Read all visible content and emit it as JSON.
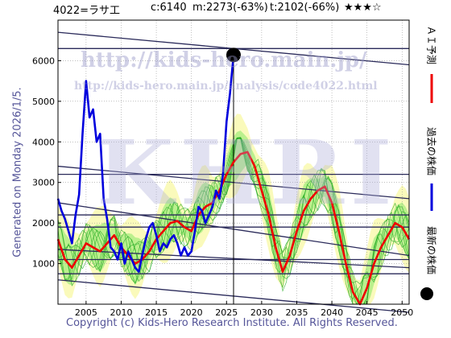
{
  "header": {
    "code_name": "4022=ラサ工",
    "current": "c:6140",
    "mean": "m:2273(-63%)",
    "target": "t:2102(-66%)",
    "stars": "★★★☆"
  },
  "footer": {
    "copyright": "Copyright (c) Kids-Hero Research Institute. All Rights Reserved."
  },
  "side": {
    "generated": "Generated on Monday 2026/1/5."
  },
  "legend": {
    "ai_forecast": "ＡＩ予測",
    "past_price": "過去の株価",
    "latest_price": "最新の株価"
  },
  "watermark": {
    "url": "http://kids-hero.main.jp/",
    "path": "http://kids-hero.main.jp/analysis/code4022.html",
    "big": "KHRI"
  },
  "colors": {
    "past": "#0000dd",
    "forecast": "#ee0000",
    "band_yellow": "#fafab4",
    "band_green": "#b4ee88",
    "sim_lines": "#22aa22",
    "trend_lines": "#2a2a5a",
    "latest_dot": "#000000"
  },
  "chart_data": {
    "type": "line",
    "xlim": [
      2001,
      2051
    ],
    "ylim": [
      0,
      7000
    ],
    "x_ticks": [
      2005,
      2010,
      2015,
      2020,
      2025,
      2030,
      2035,
      2040,
      2045,
      2050
    ],
    "y_ticks": [
      1000,
      2000,
      3000,
      4000,
      5000,
      6000
    ],
    "grid": true,
    "latest_point": {
      "x": 2026.0,
      "y": 6140
    },
    "series": [
      {
        "role": "past",
        "x": [
          2001,
          2001.5,
          2002,
          2002.5,
          2003,
          2003.5,
          2004,
          2004.5,
          2005,
          2005.5,
          2006,
          2006.5,
          2007,
          2007.5,
          2008,
          2008.5,
          2009,
          2009.5,
          2010,
          2010.5,
          2011,
          2011.5,
          2012,
          2012.5,
          2013,
          2013.5,
          2014,
          2014.5,
          2015,
          2015.5,
          2016,
          2016.5,
          2017,
          2017.5,
          2018,
          2018.5,
          2019,
          2019.5,
          2020,
          2020.5,
          2021,
          2021.5,
          2022,
          2022.5,
          2023,
          2023.5,
          2024,
          2024.5,
          2025,
          2025.5,
          2026
        ],
        "values": [
          2600,
          2300,
          2100,
          1800,
          1500,
          2200,
          2700,
          4200,
          5500,
          4600,
          4800,
          4000,
          4200,
          2600,
          2100,
          1400,
          1300,
          1100,
          1500,
          1000,
          1300,
          1100,
          900,
          800,
          1200,
          1600,
          1900,
          2000,
          1700,
          1300,
          1500,
          1400,
          1600,
          1700,
          1500,
          1200,
          1400,
          1200,
          1300,
          1800,
          2400,
          2300,
          2000,
          2200,
          2400,
          2800,
          2600,
          3200,
          4500,
          5200,
          6140
        ]
      },
      {
        "role": "forecast",
        "x": [
          2001,
          2002,
          2003,
          2004,
          2005,
          2006,
          2007,
          2008,
          2009,
          2010,
          2011,
          2012,
          2013,
          2014,
          2015,
          2016,
          2017,
          2018,
          2019,
          2020,
          2021,
          2022,
          2023,
          2024,
          2025,
          2026,
          2027,
          2028,
          2029,
          2030,
          2031,
          2032,
          2033,
          2034,
          2035,
          2036,
          2037,
          2038,
          2039,
          2040,
          2041,
          2042,
          2043,
          2044,
          2045,
          2046,
          2047,
          2048,
          2049,
          2050,
          2051
        ],
        "values": [
          1600,
          1100,
          900,
          1200,
          1500,
          1400,
          1300,
          1500,
          1700,
          1400,
          1200,
          1000,
          1100,
          1300,
          1600,
          1800,
          2000,
          2050,
          1900,
          1800,
          2200,
          2400,
          2500,
          2800,
          3200,
          3500,
          3700,
          3750,
          3400,
          2800,
          2200,
          1400,
          800,
          1200,
          1800,
          2300,
          2600,
          2800,
          2900,
          2500,
          1800,
          1000,
          300,
          0,
          400,
          1000,
          1400,
          1700,
          2000,
          1900,
          1600
        ]
      }
    ],
    "trend_lines": [
      {
        "y_start": 6700,
        "y_end": 5900
      },
      {
        "y_start": 6300,
        "y_end": 6300
      },
      {
        "y_start": 3400,
        "y_end": 2600
      },
      {
        "y_start": 3200,
        "y_end": 3200
      },
      {
        "y_start": 2500,
        "y_end": 1200
      },
      {
        "y_start": 2200,
        "y_end": 2200
      },
      {
        "y_start": 1900,
        "y_end": 1900
      },
      {
        "y_start": 1350,
        "y_end": 900
      },
      {
        "y_start": 1100,
        "y_end": 1100
      },
      {
        "y_start": 750,
        "y_end": 750
      },
      {
        "y_start": 600,
        "y_end": -200
      }
    ]
  }
}
